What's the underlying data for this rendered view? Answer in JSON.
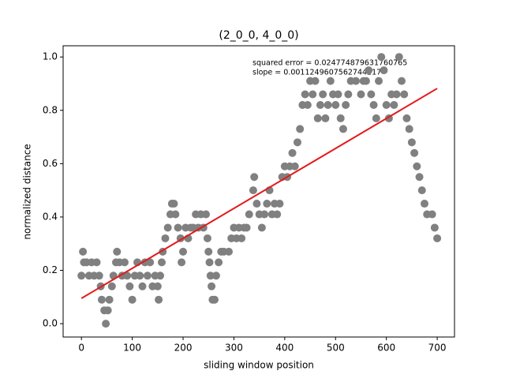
{
  "chart_data": {
    "type": "scatter",
    "title": "(2_0_0, 4_0_0)",
    "x_label": "sliding window position",
    "y_label": "normalized distance",
    "annotations": [
      "squared error = 0.024774879631760765",
      "slope = 0.0011249607562744217"
    ],
    "xlim": [
      -36,
      734
    ],
    "ylim": [
      -0.05,
      1.042
    ],
    "xticks": [
      0,
      100,
      200,
      300,
      400,
      500,
      600,
      700
    ],
    "yticks": [
      {
        "value": 0,
        "label": "0.0"
      },
      0.2,
      0.4,
      0.6,
      0.8,
      {
        "value": 1,
        "label": "1.0"
      }
    ],
    "points": {
      "color": "#808080",
      "x": [
        0,
        3,
        5,
        10,
        15,
        20,
        25,
        30,
        35,
        38,
        40,
        45,
        48,
        52,
        55,
        60,
        63,
        68,
        70,
        75,
        80,
        85,
        90,
        95,
        100,
        105,
        110,
        115,
        120,
        125,
        130,
        135,
        140,
        145,
        150,
        152,
        155,
        158,
        160,
        165,
        170,
        175,
        178,
        182,
        185,
        190,
        195,
        197,
        200,
        205,
        210,
        215,
        220,
        225,
        230,
        235,
        240,
        245,
        248,
        250,
        252,
        254,
        256,
        258,
        262,
        265,
        270,
        275,
        280,
        290,
        295,
        300,
        305,
        310,
        315,
        320,
        325,
        330,
        338,
        340,
        345,
        350,
        355,
        360,
        365,
        370,
        375,
        380,
        385,
        390,
        395,
        400,
        405,
        410,
        415,
        420,
        425,
        430,
        435,
        440,
        445,
        450,
        455,
        460,
        465,
        470,
        475,
        480,
        485,
        490,
        495,
        500,
        505,
        510,
        515,
        520,
        525,
        530,
        540,
        550,
        555,
        560,
        565,
        570,
        575,
        580,
        585,
        590,
        595,
        600,
        605,
        610,
        615,
        620,
        625,
        630,
        635,
        640,
        645,
        650,
        655,
        660,
        665,
        670,
        675,
        680,
        690,
        695,
        700
      ],
      "y": [
        0.18,
        0.27,
        0.23,
        0.23,
        0.18,
        0.23,
        0.18,
        0.23,
        0.18,
        0.14,
        0.09,
        0.05,
        0,
        0.05,
        0.09,
        0.14,
        0.18,
        0.23,
        0.27,
        0.23,
        0.18,
        0.23,
        0.18,
        0.14,
        0.09,
        0.18,
        0.23,
        0.18,
        0.14,
        0.23,
        0.18,
        0.23,
        0.14,
        0.18,
        0.14,
        0.09,
        0.18,
        0.23,
        0.27,
        0.32,
        0.36,
        0.41,
        0.45,
        0.45,
        0.41,
        0.36,
        0.32,
        0.23,
        0.27,
        0.36,
        0.32,
        0.36,
        0.36,
        0.41,
        0.36,
        0.41,
        0.36,
        0.41,
        0.32,
        0.27,
        0.23,
        0.18,
        0.14,
        0.09,
        0.09,
        0.18,
        0.23,
        0.27,
        0.27,
        0.27,
        0.32,
        0.36,
        0.32,
        0.36,
        0.32,
        0.36,
        0.36,
        0.41,
        0.5,
        0.55,
        0.45,
        0.41,
        0.36,
        0.41,
        0.45,
        0.5,
        0.41,
        0.45,
        0.41,
        0.45,
        0.55,
        0.59,
        0.55,
        0.59,
        0.64,
        0.59,
        0.68,
        0.73,
        0.82,
        0.86,
        0.82,
        0.91,
        0.86,
        0.91,
        0.77,
        0.82,
        0.86,
        0.77,
        0.82,
        0.91,
        0.86,
        0.82,
        0.86,
        0.77,
        0.73,
        0.82,
        0.86,
        0.91,
        0.91,
        0.86,
        0.91,
        0.91,
        0.95,
        0.86,
        0.82,
        0.77,
        0.91,
        1,
        0.95,
        0.82,
        0.77,
        0.86,
        0.82,
        0.86,
        1,
        0.91,
        0.86,
        0.77,
        0.73,
        0.68,
        0.64,
        0.59,
        0.55,
        0.5,
        0.45,
        0.41,
        0.41,
        0.36,
        0.32
      ]
    },
    "fit": {
      "color": "#e31a1c",
      "x": [
        0,
        700
      ],
      "y": [
        0.095,
        0.882
      ]
    }
  }
}
